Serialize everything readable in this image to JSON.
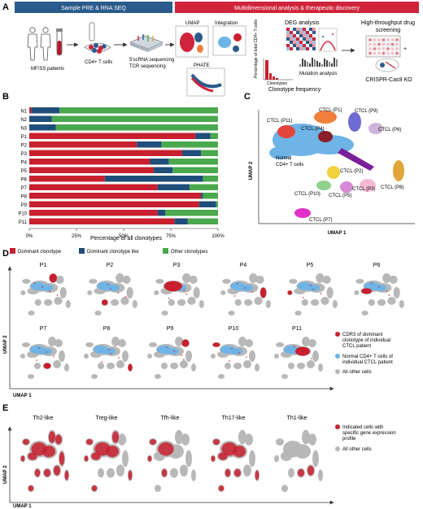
{
  "panel_a": {
    "letter": "A",
    "banner_left": "Sample PRE & RNA SEQ",
    "banner_right": "Multidimensional analysis & therapeutic discovery",
    "banner_left_color": "#2a5b8c",
    "banner_right_color": "#d0243a",
    "patients_label": "MF/SS patients",
    "cells_label": "CD4+ T cells",
    "seq_label_1": "5'scRNA sequencing",
    "seq_label_2": "TCR sequencing",
    "umap_label": "UMAP",
    "integration_label": "Integration",
    "phate_label": "PHATE",
    "deg_label": "DEG analysis",
    "mutation_label": "Mutation analysis",
    "clonotype_label": "Clonotype frequency",
    "clonotypes_axis": "Clonotypes",
    "clonotype_y_axis": "Percentage of total CD4+ T cells",
    "drug_label_1": "High-throughput drug",
    "drug_label_2": "screening",
    "crispr_label": "CRISPR-Cas9 KO"
  },
  "panel_b": {
    "letter": "B",
    "xlabel": "Percentage of all clonotypes",
    "legend": [
      "Dominant clonotype",
      "Dominant clonotype like",
      "Other clonotypes"
    ]
  },
  "panel_c": {
    "letter": "C",
    "xlabel": "UMAP 1",
    "ylabel": "UMAP 2",
    "clusters": [
      {
        "label": "CTCL (P1)",
        "color": "#f07f3c"
      },
      {
        "label": "CTCL (P9)",
        "color": "#6f6bd6"
      },
      {
        "label": "CTCL (P11)",
        "color": "#e3453a"
      },
      {
        "label": "CTCL (P4)",
        "color": "#8a1f2a"
      },
      {
        "label": "CTCL (P6)",
        "color": "#cdb4d8"
      },
      {
        "label": "CTCL (P2)",
        "color": "#f2d23b"
      },
      {
        "label": "CTCL (P10)",
        "color": "#8fd18a"
      },
      {
        "label": "CTCL (P3)",
        "color": "#f7b8d2"
      },
      {
        "label": "CTCL (P5)",
        "color": "#d48ad6"
      },
      {
        "label": "CTCL (P8)",
        "color": "#e0a63a"
      },
      {
        "label": "CTCL (P7)",
        "color": "#e030c8"
      }
    ],
    "normal_label_1": "Normal",
    "normal_label_2": "CD4+ T cells"
  },
  "panel_d": {
    "letter": "D",
    "titles_row1": [
      "P1",
      "P2",
      "P3",
      "P4",
      "P5",
      "P6"
    ],
    "titles_row2": [
      "P7",
      "P8",
      "P9",
      "P10",
      "P11"
    ],
    "xlabel": "UMAP 1",
    "ylabel": "UMAP 2",
    "legend": [
      {
        "text_1": "CDR3 of dominant",
        "text_2": "clonotype of individual",
        "text_3": "CTCL patient",
        "color": "#c8202e"
      },
      {
        "text_1": "Normal CD4+ T cells of",
        "text_2": "individual CTCL patient",
        "text_3": "",
        "color": "#6eb4e6"
      },
      {
        "text_1": "All other cells",
        "text_2": "",
        "text_3": "",
        "color": "#b8b8b8"
      }
    ]
  },
  "panel_e": {
    "letter": "E",
    "titles": [
      "Th2-like",
      "Treg-like",
      "Tfh-like",
      "Th17-like",
      "Th1-like"
    ],
    "xlabel": "UMAP 1",
    "ylabel": "UMAP 2",
    "legend": [
      {
        "text_1": "Indicated cells with",
        "text_2": "specific gene expression",
        "text_3": "profile",
        "color": "#c8202e"
      },
      {
        "text_1": "All other cells",
        "text_2": "",
        "text_3": "",
        "color": "#b8b8b8"
      }
    ]
  },
  "chart_data": {
    "type": "bar",
    "orientation": "horizontal",
    "stacked": true,
    "categories": [
      "N1",
      "N2",
      "N3",
      "P1",
      "P2",
      "P3",
      "P4",
      "P5",
      "P6",
      "P7",
      "P8",
      "P9",
      "P10",
      "P11"
    ],
    "series": [
      {
        "name": "Dominant clonotype",
        "color": "#c8202e",
        "values": [
          1,
          0,
          0,
          88,
          57,
          81,
          64,
          66,
          40,
          68,
          91,
          90,
          68,
          77
        ]
      },
      {
        "name": "Dominant clonotype like",
        "color": "#1f4e7a",
        "values": [
          15,
          12,
          14,
          8,
          13,
          10,
          10,
          10,
          52,
          17,
          1,
          9,
          4,
          7
        ]
      },
      {
        "name": "Other clonotypes",
        "color": "#4aa84e",
        "values": [
          84,
          88,
          86,
          4,
          30,
          9,
          26,
          24,
          8,
          15,
          8,
          1,
          28,
          16
        ]
      }
    ],
    "xticks": [
      "0%",
      "25%",
      "50%",
      "75%",
      "100%"
    ],
    "xlim": [
      0,
      100
    ],
    "xlabel": "Percentage of all clonotypes",
    "legend_position": "bottom"
  }
}
